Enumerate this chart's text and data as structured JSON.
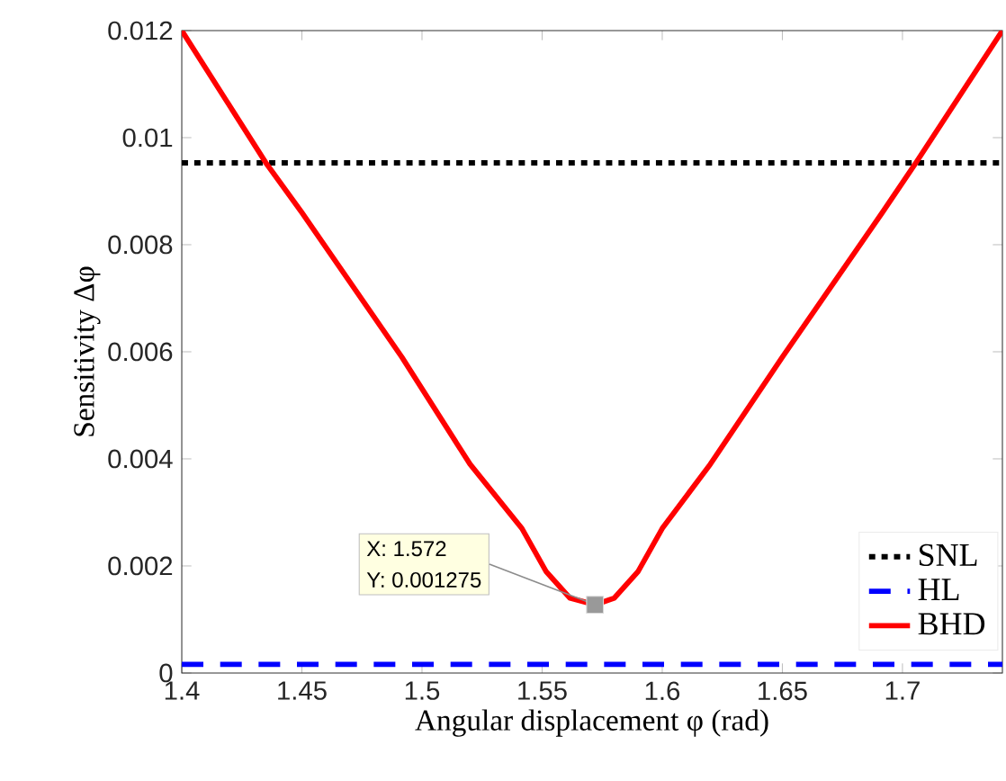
{
  "chart_data": {
    "type": "line",
    "xlabel": "Angular displacement φ (rad)",
    "ylabel": "Sensitivity Δφ",
    "xlim": [
      1.4,
      1.7416
    ],
    "ylim": [
      0,
      0.012
    ],
    "xticks": [
      1.4,
      1.45,
      1.5,
      1.55,
      1.6,
      1.65,
      1.7
    ],
    "yticks": [
      0,
      0.002,
      0.004,
      0.006,
      0.008,
      0.01,
      0.012
    ],
    "legend": "bottom right",
    "grid": false,
    "series": [
      {
        "name": "SNL",
        "color": "#000000",
        "line_style": "dotted",
        "x": [
          1.4,
          1.7416
        ],
        "values": [
          0.00953,
          0.00953
        ]
      },
      {
        "name": "HL",
        "color": "#0000ff",
        "line_style": "dashed",
        "x": [
          1.4,
          1.7416
        ],
        "values": [
          0.00016,
          0.00016
        ]
      },
      {
        "name": "BHD",
        "color": "#ff0000",
        "line_style": "solid",
        "x": [
          1.4,
          1.435,
          1.45,
          1.4916,
          1.52,
          1.5416,
          1.5516,
          1.5616,
          1.572,
          1.58,
          1.59,
          1.6,
          1.62,
          1.65,
          1.6916,
          1.7056,
          1.7416
        ],
        "values": [
          0.012,
          0.00953,
          0.0086,
          0.0059,
          0.0039,
          0.0027,
          0.0019,
          0.0014,
          0.001275,
          0.0014,
          0.0019,
          0.0027,
          0.0039,
          0.0059,
          0.0086,
          0.00953,
          0.012
        ]
      }
    ],
    "annotations": [
      "X: 1.572",
      {
        "text": "Y: 0.001275",
        "x": 1.572,
        "y": 0.001275
      }
    ]
  }
}
